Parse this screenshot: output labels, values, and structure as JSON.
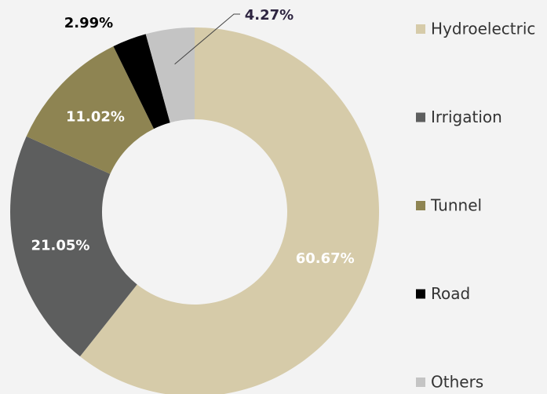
{
  "chart_data": {
    "type": "donut",
    "categories": [
      "Hydroelectric",
      "Irrigation",
      "Tunnel",
      "Road",
      "Others"
    ],
    "values": [
      60.67,
      21.05,
      11.02,
      2.99,
      4.27
    ],
    "value_labels": [
      "60.67%",
      "21.05%",
      "11.02%",
      "2.99%",
      "4.27%"
    ],
    "colors": [
      "#d6cba9",
      "#5d5e5e",
      "#8e8452",
      "#000000",
      "#c4c4c4"
    ],
    "legend": "right"
  }
}
